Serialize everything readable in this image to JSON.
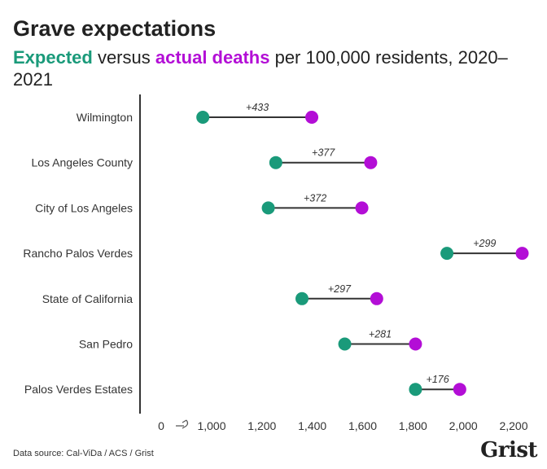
{
  "header": {
    "title": "Grave expectations",
    "subtitle_expected": "Expected",
    "subtitle_mid": " versus ",
    "subtitle_actual": "actual deaths",
    "subtitle_rest": " per 100,000 residents, 2020–2021"
  },
  "colors": {
    "expected": "#1a9a7a",
    "actual": "#b30ed6",
    "connector": "#333333",
    "axis": "#333333",
    "text": "#222222"
  },
  "footer": {
    "source": "Data source: Cal-ViDa / ACS / Grist",
    "logo": "Grist"
  },
  "chart_data": {
    "type": "dumbbell",
    "orientation": "horizontal",
    "xlim": [
      900,
      2230
    ],
    "x_axis_broken": true,
    "x_ticks": [
      0,
      1000,
      1200,
      1400,
      1600,
      1800,
      2000,
      2200
    ],
    "x_tick_labels": [
      "0",
      "1,000",
      "1,200",
      "1,400",
      "1,600",
      "1,800",
      "2,000",
      "2,200"
    ],
    "grid": false,
    "series": [
      {
        "name": "Expected",
        "color": "#1a9a7a"
      },
      {
        "name": "actual deaths",
        "color": "#b30ed6"
      }
    ],
    "rows": [
      {
        "label": "Wilmington",
        "expected": 965,
        "actual": 1398,
        "diff_label": "+433"
      },
      {
        "label": "Los Angeles County",
        "expected": 1255,
        "actual": 1632,
        "diff_label": "+377"
      },
      {
        "label": "City of Los Angeles",
        "expected": 1225,
        "actual": 1597,
        "diff_label": "+372"
      },
      {
        "label": "Rancho Palos Verdes",
        "expected": 1935,
        "actual": 2234,
        "diff_label": "+299"
      },
      {
        "label": "State of California",
        "expected": 1359,
        "actual": 1656,
        "diff_label": "+297"
      },
      {
        "label": "San Pedro",
        "expected": 1529,
        "actual": 1810,
        "diff_label": "+281"
      },
      {
        "label": "Palos Verdes Estates",
        "expected": 1810,
        "actual": 1986,
        "diff_label": "+176"
      }
    ]
  }
}
